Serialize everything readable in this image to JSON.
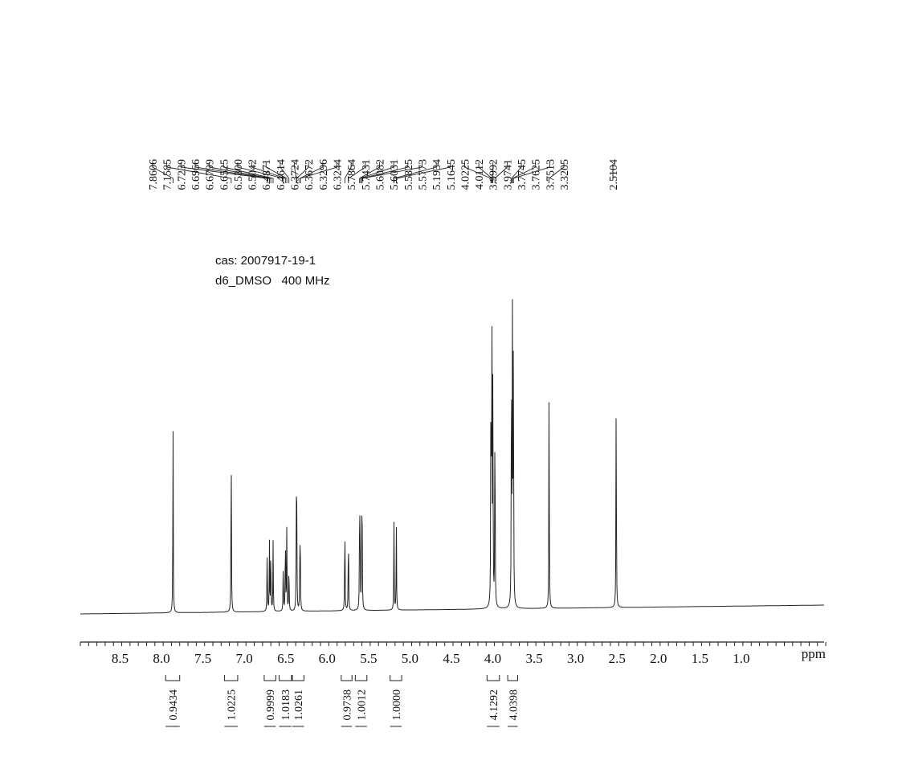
{
  "chart_data": {
    "type": "line",
    "title": "",
    "xlabel": "ppm",
    "ylabel": "",
    "xlim": [
      8.98,
      0.0
    ],
    "reversed_x": true,
    "grid": false,
    "sample_info": [
      "cas: 2007917-19-1",
      "d6_DMSO   400 MHz"
    ],
    "x_ticks": [
      "8.5",
      "8.0",
      "7.5",
      "7.0",
      "6.5",
      "6.0",
      "5.5",
      "5.0",
      "4.5",
      "4.0",
      "3.5",
      "3.0",
      "2.5",
      "2.0",
      "1.5",
      "1.0"
    ],
    "peak_labels": [
      "7.8606",
      "7.1585",
      "6.7239",
      "6.6966",
      "6.6799",
      "6.6525",
      "6.5300",
      "6.5042",
      "6.4871",
      "6.4614",
      "6.3724",
      "6.3672",
      "6.3296",
      "6.3244",
      "5.7864",
      "5.7431",
      "5.6082",
      "5.6031",
      "5.5825",
      "5.5773",
      "5.1934",
      "5.1645",
      "4.0225",
      "4.0112",
      "3.9992",
      "3.9741",
      "3.7745",
      "3.7625",
      "3.7513",
      "3.3205",
      "2.5104"
    ],
    "peak_intensity": [
      0.52,
      0.5,
      0.18,
      0.19,
      0.18,
      0.19,
      0.13,
      0.23,
      0.23,
      0.14,
      0.26,
      0.26,
      0.16,
      0.16,
      0.26,
      0.24,
      0.24,
      0.22,
      0.22,
      0.22,
      0.24,
      0.23,
      0.7,
      0.82,
      0.65,
      0.6,
      0.78,
      0.75,
      0.85,
      0.62,
      0.62
    ],
    "integrations": [
      {
        "label": "0.9434",
        "from": 7.95,
        "to": 7.78
      },
      {
        "label": "1.0225",
        "from": 7.24,
        "to": 7.08
      },
      {
        "label": "0.9999",
        "from": 6.76,
        "to": 6.62
      },
      {
        "label": "1.0183",
        "from": 6.58,
        "to": 6.43
      },
      {
        "label": "1.0261",
        "from": 6.42,
        "to": 6.28
      },
      {
        "label": "0.9738",
        "from": 5.83,
        "to": 5.7
      },
      {
        "label": "1.0012",
        "from": 5.66,
        "to": 5.52
      },
      {
        "label": "1.0000",
        "from": 5.24,
        "to": 5.1
      },
      {
        "label": "4.1292",
        "from": 4.07,
        "to": 3.92
      },
      {
        "label": "4.0398",
        "from": 3.82,
        "to": 3.7
      }
    ]
  }
}
